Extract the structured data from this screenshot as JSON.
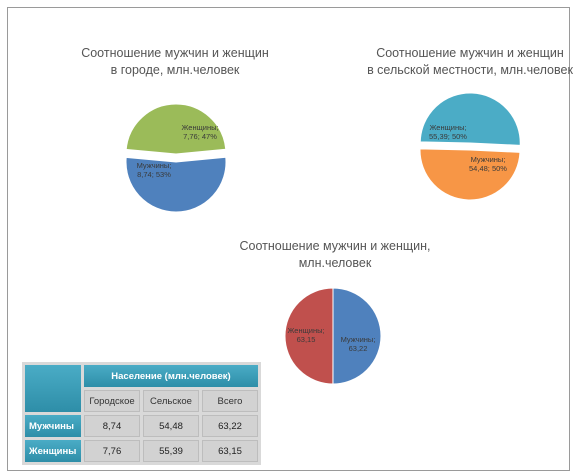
{
  "chart_data": [
    {
      "type": "pie",
      "title": [
        "Соотношение мужчин и женщин",
        "в городе, млн.человек"
      ],
      "slices": [
        {
          "name": "Женщины",
          "value": 7.76,
          "percent": "47%",
          "color": "#9bbb59",
          "exploded": true
        },
        {
          "name": "Мужчины",
          "value": 8.74,
          "percent": "53%",
          "color": "#4f81bd",
          "exploded": false
        }
      ],
      "data_labels": [
        "Женщины;",
        "7,76; 47%",
        "Мужчины;",
        "8,74; 53%"
      ]
    },
    {
      "type": "pie",
      "title": [
        "Соотношение мужчин и женщин",
        "в сельской местности, млн.человек"
      ],
      "slices": [
        {
          "name": "Женщины",
          "value": 55.39,
          "percent": "50%",
          "color": "#4bacc6",
          "exploded": true
        },
        {
          "name": "Мужчины",
          "value": 54.48,
          "percent": "50%",
          "color": "#f79646",
          "exploded": false
        }
      ],
      "data_labels": [
        "Женщины;",
        "55,39; 50%",
        "Мужчины;",
        "54,48; 50%"
      ]
    },
    {
      "type": "pie",
      "title": [
        "Соотношение мужчин и женщин,",
        "млн.человек"
      ],
      "slices": [
        {
          "name": "Мужчины",
          "value": 63.22,
          "color": "#4f81bd",
          "exploded": false
        },
        {
          "name": "Женщины",
          "value": 63.15,
          "color": "#c0504d",
          "exploded": false
        }
      ],
      "data_labels": [
        "Мужчины;",
        "63,22",
        "Женщины;",
        "63,15"
      ]
    },
    {
      "type": "table",
      "header": "Население (млн.человек)",
      "columns": [
        "Городское",
        "Сельское",
        "Всего"
      ],
      "rows": [
        {
          "label": "Мужчины",
          "values": [
            "8,74",
            "54,48",
            "63,22"
          ]
        },
        {
          "label": "Женщины",
          "values": [
            "7,76",
            "55,39",
            "63,15"
          ]
        }
      ]
    }
  ]
}
